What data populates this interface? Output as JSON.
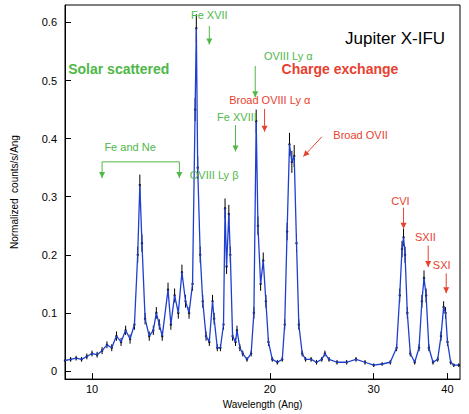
{
  "chart_data": {
    "type": "scatter",
    "title": {
      "text": "Jupiter X-IFU",
      "x": 32.6,
      "y": 0.573
    },
    "x_label": "Wavelength (Ang)",
    "y_label": "Normalized  counts/s/Ang",
    "log": "x",
    "grid": false,
    "xlim": [
      9,
      42
    ],
    "xticks": [
      10,
      20,
      30,
      40
    ],
    "ylim": [
      -0.014,
      0.63
    ],
    "yticks": [
      0,
      0.1,
      0.2,
      0.3,
      0.4,
      0.5,
      0.6
    ],
    "x": [
      9.0,
      9.2,
      9.4,
      9.6,
      9.8,
      10.0,
      10.2,
      10.4,
      10.6,
      10.8,
      11.0,
      11.2,
      11.4,
      11.6,
      11.8,
      11.95,
      12.05,
      12.15,
      12.3,
      12.5,
      12.7,
      12.85,
      13.0,
      13.15,
      13.45,
      13.6,
      13.8,
      14.0,
      14.2,
      14.4,
      14.6,
      14.8,
      14.95,
      15.02,
      15.1,
      15.25,
      15.4,
      15.6,
      15.8,
      16.0,
      16.1,
      16.3,
      16.5,
      16.7,
      16.8,
      16.9,
      17.05,
      17.15,
      17.3,
      17.5,
      17.6,
      17.8,
      18.0,
      18.3,
      18.6,
      18.8,
      18.97,
      19.1,
      19.3,
      19.5,
      19.7,
      19.9,
      20.2,
      20.6,
      21.0,
      21.2,
      21.4,
      21.6,
      21.8,
      22.0,
      22.2,
      22.4,
      22.7,
      23.0,
      23.5,
      24.0,
      24.5,
      24.8,
      25.2,
      26.0,
      27.0,
      28.0,
      29.0,
      30.0,
      31.0,
      32.0,
      32.8,
      33.2,
      33.5,
      33.7,
      33.9,
      34.2,
      34.6,
      35.2,
      35.8,
      36.2,
      36.5,
      36.8,
      37.2,
      37.8,
      38.5,
      39.0,
      39.4,
      39.7,
      40.0,
      40.5,
      41.0,
      41.8
    ],
    "series": [
      {
        "type": "scatter",
        "color": "#000000",
        "marker": "point",
        "values": [
          0.018,
          0.02,
          0.022,
          0.02,
          0.025,
          0.03,
          0.028,
          0.035,
          0.045,
          0.04,
          0.06,
          0.05,
          0.07,
          0.055,
          0.08,
          0.2,
          0.32,
          0.22,
          0.09,
          0.06,
          0.07,
          0.1,
          0.08,
          0.06,
          0.14,
          0.08,
          0.13,
          0.1,
          0.17,
          0.12,
          0.1,
          0.15,
          0.45,
          0.59,
          0.35,
          0.2,
          0.12,
          0.06,
          0.05,
          0.12,
          0.09,
          0.04,
          0.04,
          0.08,
          0.28,
          0.18,
          0.27,
          0.2,
          0.06,
          0.05,
          0.07,
          0.04,
          0.03,
          0.02,
          0.03,
          0.1,
          0.43,
          0.25,
          0.15,
          0.19,
          0.12,
          0.05,
          0.02,
          0.015,
          0.02,
          0.08,
          0.24,
          0.39,
          0.36,
          0.37,
          0.22,
          0.08,
          0.03,
          0.02,
          0.02,
          0.015,
          0.02,
          0.03,
          0.02,
          0.015,
          0.015,
          0.02,
          0.015,
          0.01,
          0.012,
          0.015,
          0.04,
          0.13,
          0.21,
          0.23,
          0.2,
          0.1,
          0.03,
          0.015,
          0.04,
          0.12,
          0.16,
          0.13,
          0.04,
          0.015,
          0.02,
          0.06,
          0.11,
          0.1,
          0.05,
          0.015,
          0.01,
          0.01
        ],
        "errors": [
          0.004,
          0.004,
          0.004,
          0.004,
          0.005,
          0.005,
          0.005,
          0.006,
          0.006,
          0.006,
          0.008,
          0.007,
          0.008,
          0.008,
          0.009,
          0.014,
          0.018,
          0.015,
          0.01,
          0.008,
          0.008,
          0.01,
          0.009,
          0.008,
          0.012,
          0.009,
          0.012,
          0.01,
          0.013,
          0.011,
          0.01,
          0.012,
          0.02,
          0.024,
          0.019,
          0.014,
          0.011,
          0.008,
          0.007,
          0.011,
          0.01,
          0.006,
          0.006,
          0.009,
          0.017,
          0.013,
          0.016,
          0.014,
          0.008,
          0.007,
          0.008,
          0.006,
          0.005,
          0.004,
          0.005,
          0.01,
          0.02,
          0.016,
          0.012,
          0.014,
          0.011,
          0.007,
          0.004,
          0.004,
          0.004,
          0.009,
          0.015,
          0.02,
          0.019,
          0.019,
          0.015,
          0.009,
          0.005,
          0.004,
          0.004,
          0.004,
          0.004,
          0.005,
          0.004,
          0.004,
          0.004,
          0.004,
          0.004,
          0.003,
          0.003,
          0.004,
          0.006,
          0.012,
          0.014,
          0.015,
          0.014,
          0.01,
          0.005,
          0.004,
          0.006,
          0.011,
          0.013,
          0.012,
          0.006,
          0.004,
          0.004,
          0.008,
          0.01,
          0.01,
          0.007,
          0.004,
          0.003,
          0.003
        ]
      },
      {
        "type": "line",
        "color": "#1f3fcf",
        "line_style": "solid",
        "values": [
          0.018,
          0.02,
          0.022,
          0.02,
          0.025,
          0.03,
          0.028,
          0.035,
          0.045,
          0.04,
          0.06,
          0.05,
          0.07,
          0.055,
          0.08,
          0.2,
          0.32,
          0.22,
          0.09,
          0.06,
          0.07,
          0.1,
          0.08,
          0.06,
          0.14,
          0.08,
          0.13,
          0.1,
          0.17,
          0.12,
          0.1,
          0.15,
          0.45,
          0.59,
          0.35,
          0.2,
          0.12,
          0.06,
          0.05,
          0.12,
          0.09,
          0.04,
          0.04,
          0.08,
          0.28,
          0.18,
          0.27,
          0.2,
          0.06,
          0.05,
          0.07,
          0.04,
          0.03,
          0.02,
          0.03,
          0.1,
          0.43,
          0.25,
          0.15,
          0.19,
          0.12,
          0.05,
          0.02,
          0.015,
          0.02,
          0.08,
          0.24,
          0.39,
          0.36,
          0.37,
          0.22,
          0.08,
          0.03,
          0.02,
          0.02,
          0.015,
          0.02,
          0.03,
          0.02,
          0.015,
          0.015,
          0.02,
          0.015,
          0.01,
          0.012,
          0.015,
          0.04,
          0.13,
          0.21,
          0.23,
          0.2,
          0.1,
          0.03,
          0.015,
          0.04,
          0.12,
          0.16,
          0.13,
          0.04,
          0.015,
          0.02,
          0.06,
          0.11,
          0.1,
          0.05,
          0.015,
          0.01,
          0.01
        ]
      }
    ],
    "headings": [
      {
        "text": "Solar scattered",
        "color": "#4fb848",
        "x": 11.1,
        "y": 0.519
      },
      {
        "text": "Charge exchange",
        "color": "#e8412f",
        "x": 26.3,
        "y": 0.519
      }
    ],
    "annotations": [
      {
        "text": "Fe XVII",
        "color": "#4fb848",
        "x": 15.8,
        "y": 0.612
      },
      {
        "text": "OVIII Ly α",
        "color": "#4fb848",
        "x": 21.5,
        "y": 0.543
      },
      {
        "text": "Broad OVIII Ly α",
        "color": "#e8412f",
        "x": 20.0,
        "y": 0.466
      },
      {
        "text": "Fe XVIII",
        "color": "#4fb848",
        "x": 17.6,
        "y": 0.437
      },
      {
        "text": "Broad OVII",
        "color": "#e8412f",
        "x": 28.5,
        "y": 0.406
      },
      {
        "text": "Fe and Ne",
        "color": "#4fb848",
        "x": 11.6,
        "y": 0.386
      },
      {
        "text": "OVIII Ly β",
        "color": "#4fb848",
        "x": 16.1,
        "y": 0.338
      },
      {
        "text": "CVI",
        "color": "#e8412f",
        "x": 33.3,
        "y": 0.293
      },
      {
        "text": "SXII",
        "color": "#e8412f",
        "x": 36.7,
        "y": 0.23
      },
      {
        "text": "SXI",
        "color": "#e8412f",
        "x": 39.1,
        "y": 0.182
      }
    ],
    "lines": [
      {
        "color": "#4fb848",
        "arrow": true,
        "points": [
          [
            15.8,
            0.594
          ],
          [
            15.8,
            0.562
          ]
        ]
      },
      {
        "color": "#4fb848",
        "arrow": true,
        "points": [
          [
            18.9,
            0.525
          ],
          [
            18.9,
            0.471
          ]
        ]
      },
      {
        "color": "#e8412f",
        "arrow": true,
        "points": [
          [
            19.6,
            0.451
          ],
          [
            19.6,
            0.412
          ]
        ]
      },
      {
        "color": "#4fb848",
        "arrow": true,
        "points": [
          [
            17.5,
            0.423
          ],
          [
            17.5,
            0.378
          ]
        ]
      },
      {
        "color": "#e8412f",
        "arrow": true,
        "points": [
          [
            24.5,
            0.403
          ],
          [
            22.8,
            0.369
          ]
        ]
      },
      {
        "color": "#4fb848",
        "arrow": false,
        "points": [
          [
            10.4,
            0.36
          ],
          [
            14.06,
            0.36
          ]
        ]
      },
      {
        "color": "#4fb848",
        "arrow": true,
        "points": [
          [
            10.4,
            0.36
          ],
          [
            10.4,
            0.332
          ]
        ]
      },
      {
        "color": "#4fb848",
        "arrow": true,
        "points": [
          [
            14.06,
            0.36
          ],
          [
            14.06,
            0.332
          ]
        ]
      },
      {
        "color": "#e8412f",
        "arrow": true,
        "points": [
          [
            33.7,
            0.281
          ],
          [
            33.7,
            0.245
          ]
        ]
      },
      {
        "color": "#e8412f",
        "arrow": true,
        "points": [
          [
            37.1,
            0.216
          ],
          [
            37.1,
            0.179
          ]
        ]
      },
      {
        "color": "#e8412f",
        "arrow": true,
        "points": [
          [
            39.8,
            0.168
          ],
          [
            39.8,
            0.134
          ]
        ]
      }
    ]
  }
}
